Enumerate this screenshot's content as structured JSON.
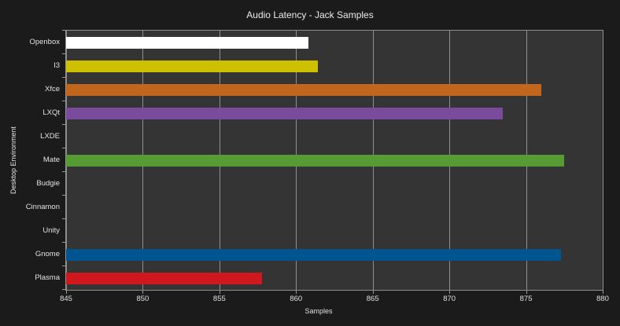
{
  "chart_data": {
    "type": "bar",
    "orientation": "horizontal",
    "title": "Audio Latency - Jack Samples",
    "xlabel": "Samples",
    "ylabel": "Desktop Environment",
    "categories": [
      "Openbox",
      "I3",
      "Xfce",
      "LXQt",
      "LXDE",
      "Mate",
      "Budgie",
      "Cinnamon",
      "Unity",
      "Gnome",
      "Plasma"
    ],
    "values": [
      860.8,
      861.4,
      876.0,
      873.5,
      845.0,
      877.5,
      845.0,
      845.0,
      845.0,
      877.3,
      857.8
    ],
    "bar_colors": [
      "#ffffff",
      "#ccc000",
      "#c2661b",
      "#7a4b9d",
      null,
      "#579b34",
      null,
      null,
      null,
      "#005591",
      "#ce181e"
    ],
    "xlim": [
      845,
      880
    ],
    "xticks": [
      845,
      850,
      855,
      860,
      865,
      870,
      875,
      880
    ],
    "grid": "vertical",
    "legend": "none"
  },
  "colors": {
    "figure_bg": "#1b1b1b",
    "plot_bg": "#343434",
    "grid": "#8f8f8f",
    "spine": "#8f8f8f",
    "tick_mark": "#9a9a9a",
    "text": "#e2e2e2",
    "title_text": "#ececec"
  }
}
